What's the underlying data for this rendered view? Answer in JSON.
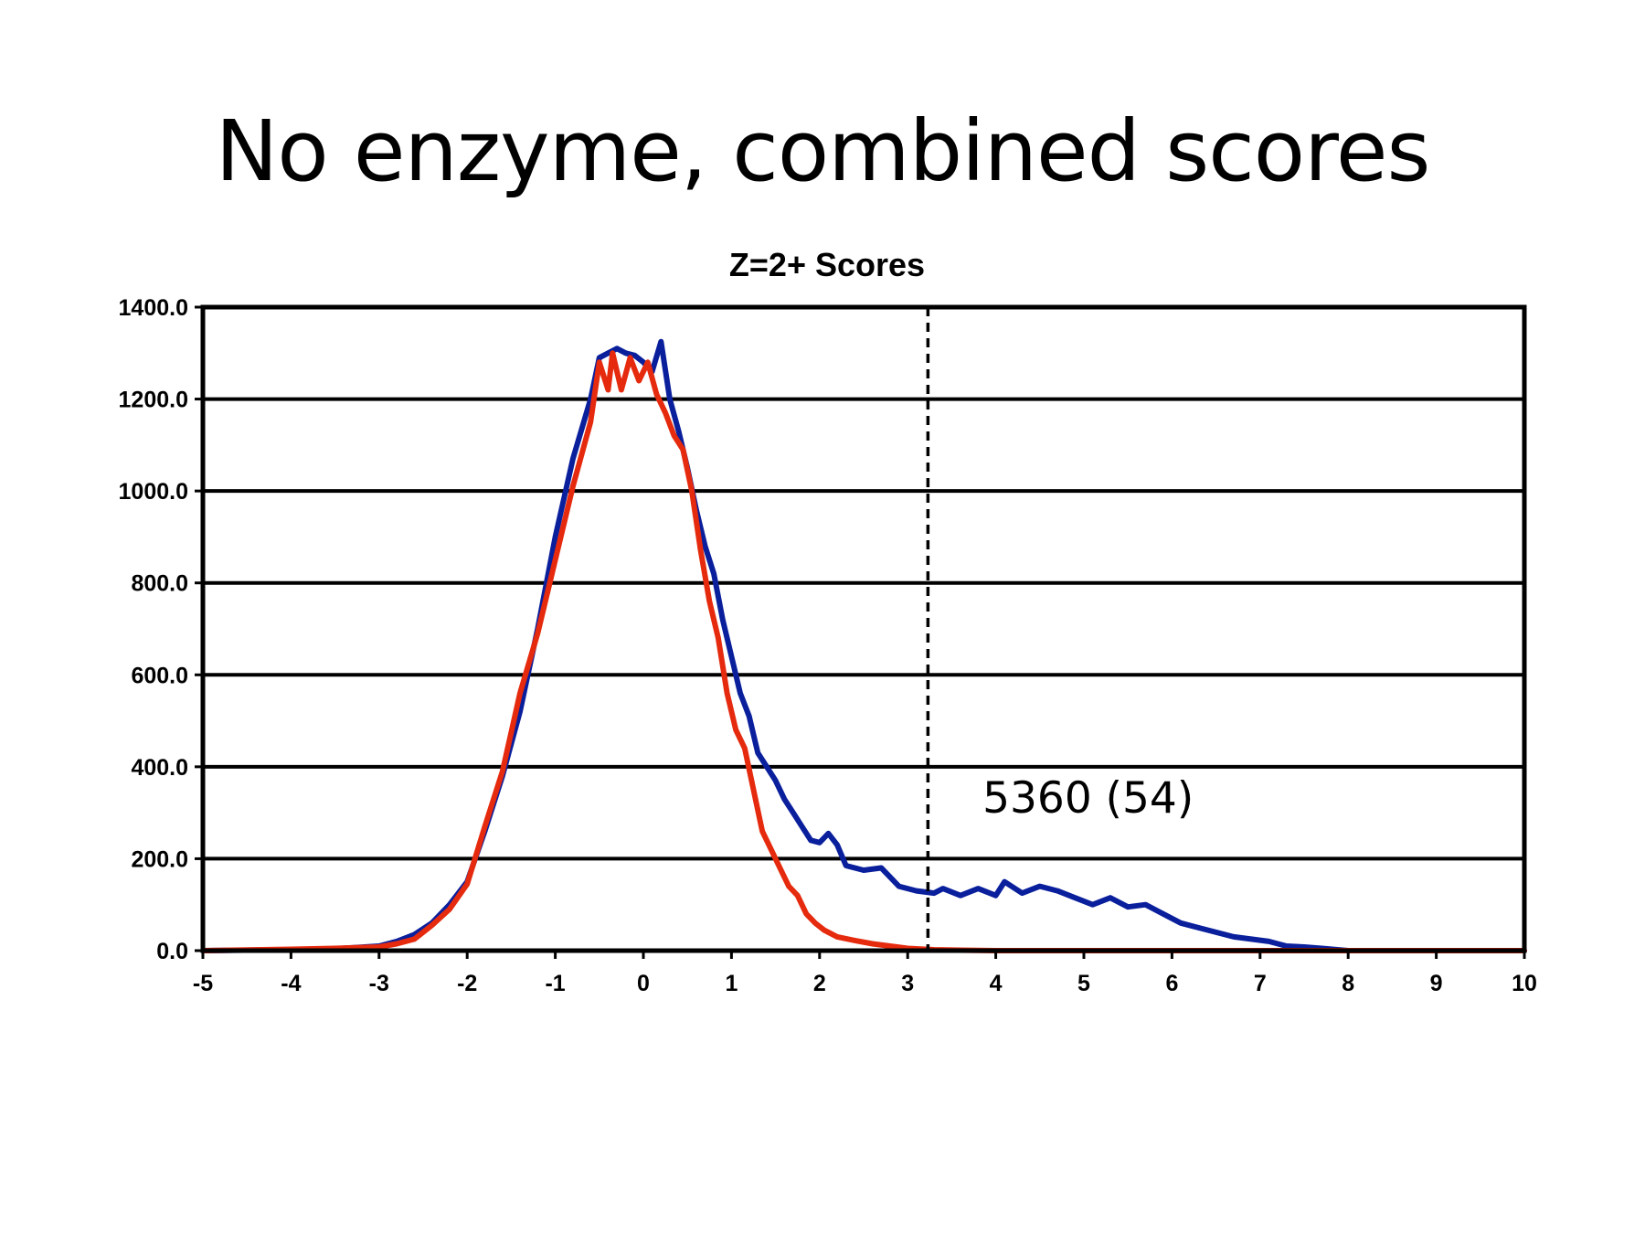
{
  "slide": {
    "title": "No enzyme, combined scores"
  },
  "chart_data": {
    "type": "line",
    "title": "Z=2+ Scores",
    "xlabel": "",
    "ylabel": "",
    "xlim": [
      -5,
      10
    ],
    "ylim": [
      0,
      1400
    ],
    "x_ticks": [
      "-5",
      "-4",
      "-3",
      "-2",
      "-1",
      "0",
      "1",
      "2",
      "3",
      "4",
      "5",
      "6",
      "7",
      "8",
      "9",
      "10"
    ],
    "y_ticks": [
      "0.0",
      "200.0",
      "400.0",
      "600.0",
      "800.0",
      "1000.0",
      "1200.0",
      "1400.0"
    ],
    "grid": "horizontal",
    "legend": "none",
    "threshold_line": {
      "x": 3.23,
      "style": "dashed"
    },
    "annotation": {
      "text": "5360 (54)",
      "x": 3.85,
      "y": 300
    },
    "series": [
      {
        "color": "#0a1f9c",
        "points": [
          [
            -5,
            0
          ],
          [
            -4,
            2
          ],
          [
            -3.5,
            4
          ],
          [
            -3,
            10
          ],
          [
            -2.8,
            20
          ],
          [
            -2.6,
            35
          ],
          [
            -2.4,
            60
          ],
          [
            -2.2,
            100
          ],
          [
            -2,
            150
          ],
          [
            -1.8,
            260
          ],
          [
            -1.6,
            380
          ],
          [
            -1.4,
            520
          ],
          [
            -1.2,
            700
          ],
          [
            -1,
            900
          ],
          [
            -0.8,
            1070
          ],
          [
            -0.6,
            1200
          ],
          [
            -0.5,
            1290
          ],
          [
            -0.4,
            1300
          ],
          [
            -0.3,
            1310
          ],
          [
            -0.2,
            1300
          ],
          [
            -0.1,
            1295
          ],
          [
            0,
            1280
          ],
          [
            0.1,
            1260
          ],
          [
            0.2,
            1325
          ],
          [
            0.3,
            1200
          ],
          [
            0.4,
            1130
          ],
          [
            0.5,
            1050
          ],
          [
            0.6,
            960
          ],
          [
            0.7,
            880
          ],
          [
            0.8,
            820
          ],
          [
            0.9,
            720
          ],
          [
            1,
            640
          ],
          [
            1.1,
            560
          ],
          [
            1.2,
            510
          ],
          [
            1.3,
            430
          ],
          [
            1.4,
            400
          ],
          [
            1.5,
            370
          ],
          [
            1.6,
            330
          ],
          [
            1.7,
            300
          ],
          [
            1.8,
            270
          ],
          [
            1.9,
            240
          ],
          [
            2,
            235
          ],
          [
            2.1,
            255
          ],
          [
            2.2,
            230
          ],
          [
            2.3,
            185
          ],
          [
            2.5,
            175
          ],
          [
            2.7,
            180
          ],
          [
            2.9,
            140
          ],
          [
            3.1,
            130
          ],
          [
            3.3,
            125
          ],
          [
            3.4,
            135
          ],
          [
            3.6,
            120
          ],
          [
            3.8,
            135
          ],
          [
            4,
            120
          ],
          [
            4.1,
            150
          ],
          [
            4.3,
            125
          ],
          [
            4.5,
            140
          ],
          [
            4.7,
            130
          ],
          [
            4.9,
            115
          ],
          [
            5.1,
            100
          ],
          [
            5.3,
            115
          ],
          [
            5.5,
            95
          ],
          [
            5.7,
            100
          ],
          [
            5.9,
            80
          ],
          [
            6.1,
            60
          ],
          [
            6.3,
            50
          ],
          [
            6.5,
            40
          ],
          [
            6.7,
            30
          ],
          [
            6.9,
            25
          ],
          [
            7.1,
            20
          ],
          [
            7.3,
            10
          ],
          [
            7.5,
            8
          ],
          [
            7.7,
            5
          ],
          [
            8,
            0
          ],
          [
            9,
            0
          ],
          [
            10,
            0
          ]
        ]
      },
      {
        "color": "#e52a0e",
        "points": [
          [
            -5,
            0
          ],
          [
            -4,
            3
          ],
          [
            -3.5,
            5
          ],
          [
            -3,
            8
          ],
          [
            -2.8,
            15
          ],
          [
            -2.6,
            25
          ],
          [
            -2.4,
            55
          ],
          [
            -2.2,
            90
          ],
          [
            -2,
            145
          ],
          [
            -1.8,
            270
          ],
          [
            -1.6,
            390
          ],
          [
            -1.4,
            560
          ],
          [
            -1.2,
            690
          ],
          [
            -1.0,
            850
          ],
          [
            -0.8,
            1010
          ],
          [
            -0.6,
            1150
          ],
          [
            -0.5,
            1280
          ],
          [
            -0.4,
            1220
          ],
          [
            -0.35,
            1300
          ],
          [
            -0.25,
            1220
          ],
          [
            -0.15,
            1290
          ],
          [
            -0.05,
            1240
          ],
          [
            0.05,
            1280
          ],
          [
            0.15,
            1210
          ],
          [
            0.25,
            1170
          ],
          [
            0.35,
            1120
          ],
          [
            0.45,
            1090
          ],
          [
            0.55,
            1000
          ],
          [
            0.65,
            870
          ],
          [
            0.75,
            760
          ],
          [
            0.85,
            680
          ],
          [
            0.95,
            560
          ],
          [
            1.05,
            480
          ],
          [
            1.15,
            440
          ],
          [
            1.25,
            350
          ],
          [
            1.35,
            260
          ],
          [
            1.45,
            220
          ],
          [
            1.55,
            180
          ],
          [
            1.65,
            140
          ],
          [
            1.75,
            120
          ],
          [
            1.85,
            80
          ],
          [
            1.95,
            60
          ],
          [
            2.05,
            45
          ],
          [
            2.2,
            30
          ],
          [
            2.4,
            22
          ],
          [
            2.6,
            15
          ],
          [
            2.8,
            10
          ],
          [
            3.0,
            5
          ],
          [
            3.3,
            2
          ],
          [
            3.6,
            1
          ],
          [
            4,
            0
          ],
          [
            10,
            0
          ]
        ]
      }
    ]
  }
}
